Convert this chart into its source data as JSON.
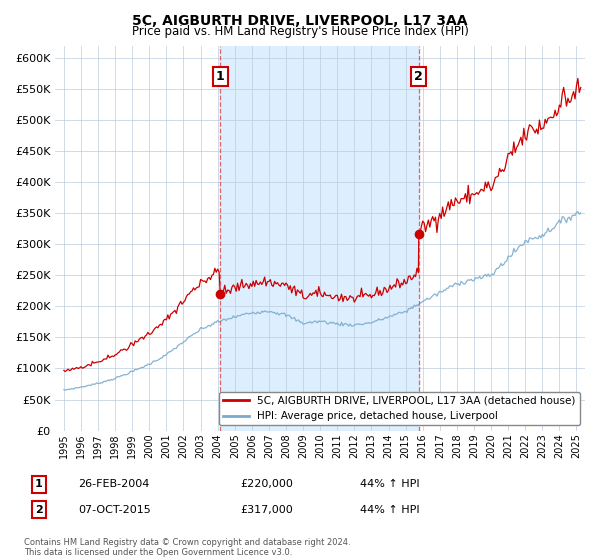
{
  "title": "5C, AIGBURTH DRIVE, LIVERPOOL, L17 3AA",
  "subtitle": "Price paid vs. HM Land Registry's House Price Index (HPI)",
  "legend_line1": "5C, AIGBURTH DRIVE, LIVERPOOL, L17 3AA (detached house)",
  "legend_line2": "HPI: Average price, detached house, Liverpool",
  "sale1_date": "26-FEB-2004",
  "sale1_price": "£220,000",
  "sale1_hpi": "44% ↑ HPI",
  "sale1_year": 2004.15,
  "sale1_value": 220000,
  "sale2_date": "07-OCT-2015",
  "sale2_price": "£317,000",
  "sale2_hpi": "44% ↑ HPI",
  "sale2_year": 2015.77,
  "sale2_value": 317000,
  "ylim": [
    0,
    620000
  ],
  "xlim": [
    1994.5,
    2025.5
  ],
  "red_color": "#cc0000",
  "blue_color": "#7aabcc",
  "shade_color": "#ddeeff",
  "footer": "Contains HM Land Registry data © Crown copyright and database right 2024.\nThis data is licensed under the Open Government Licence v3.0.",
  "yticks": [
    0,
    50000,
    100000,
    150000,
    200000,
    250000,
    300000,
    350000,
    400000,
    450000,
    500000,
    550000,
    600000
  ]
}
